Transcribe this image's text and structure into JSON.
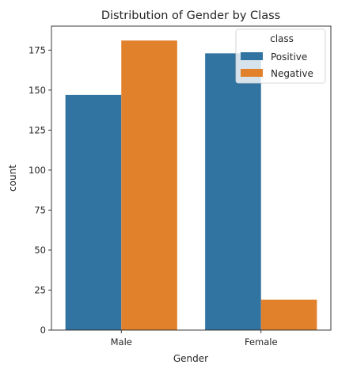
{
  "chart_data": {
    "type": "bar",
    "title": "Distribution of Gender by Class",
    "xlabel": "Gender",
    "ylabel": "count",
    "categories": [
      "Male",
      "Female"
    ],
    "series": [
      {
        "name": "Positive",
        "values": [
          147,
          173
        ],
        "color": "#3274a1"
      },
      {
        "name": "Negative",
        "values": [
          181,
          19
        ],
        "color": "#e1812c"
      }
    ],
    "ylim": [
      0,
      190
    ],
    "yticks": [
      0,
      25,
      50,
      75,
      100,
      125,
      150,
      175
    ],
    "legend": {
      "title": "class",
      "placement": "top-right"
    },
    "grid": false
  }
}
